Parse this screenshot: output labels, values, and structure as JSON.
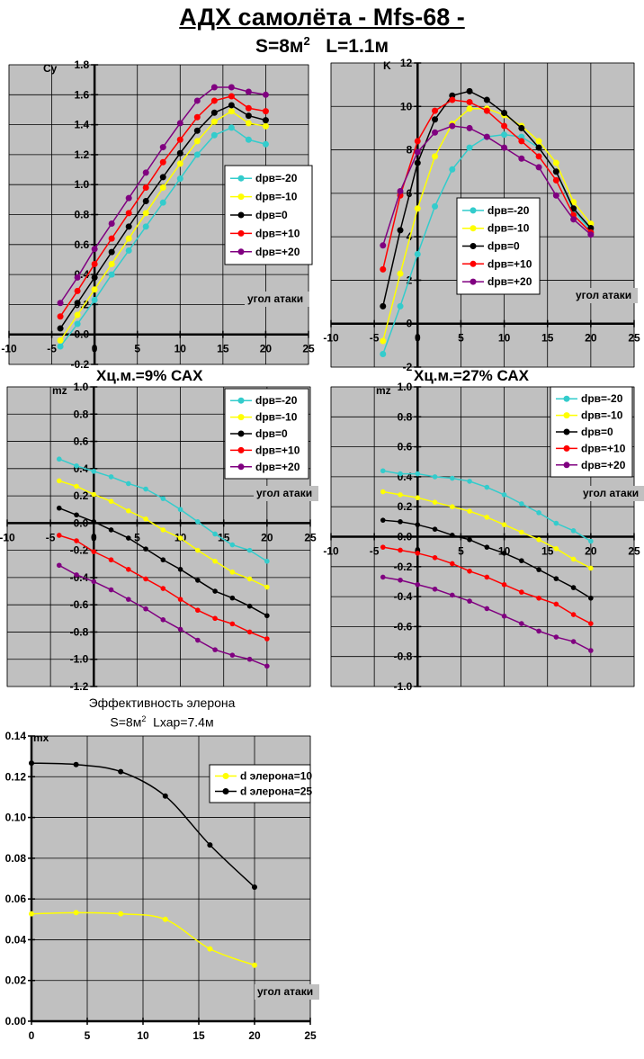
{
  "header": {
    "title": "АДХ самолёта  - Mfs-68 -",
    "subtitle_s": "S=8м",
    "subtitle_sup": "2",
    "subtitle_l": "L=1.1м"
  },
  "captions": {
    "mz9": "Хц.м.=9% САХ",
    "mz27": "Хц.м.=27% САХ",
    "aileron_line1": "Эффективность элерона",
    "aileron_line2_s": "S=8м",
    "aileron_line2_sup": "2",
    "aileron_line2_l": "Lхар=7.4м"
  },
  "colors": {
    "plot_bg": "#c0c0c0",
    "grid": "#000000",
    "dpr_m20": "#33cccc",
    "dpr_m10": "#ffff00",
    "dpr_0": "#000000",
    "dpr_p10": "#ff0000",
    "dpr_p20": "#800080"
  },
  "chart_data": [
    {
      "id": "cy",
      "type": "line",
      "title": "",
      "xlabel": "угол атаки",
      "ylabel": "Cy",
      "xlim": [
        -10,
        25
      ],
      "ylim": [
        -0.2,
        1.8
      ],
      "xticks": [
        -10,
        -5,
        0,
        5,
        10,
        15,
        20,
        25
      ],
      "yticks": [
        -0.2,
        0.0,
        0.2,
        0.4,
        0.6,
        0.8,
        1.0,
        1.2,
        1.4,
        1.6,
        1.8
      ],
      "ytick_labels": [
        "-0.2",
        "0.0",
        "0.2",
        "0.4",
        "0.6",
        "0.8",
        "1.0",
        "1.2",
        "1.4",
        "1.6",
        "1.8"
      ],
      "grid": true,
      "legend_position": "right-middle",
      "x": [
        -4,
        -2,
        0,
        2,
        4,
        6,
        8,
        10,
        12,
        14,
        16,
        18,
        20
      ],
      "series": [
        {
          "name": "dpв=-20",
          "color_key": "dpr_m20",
          "values": [
            -0.08,
            0.07,
            0.23,
            0.4,
            0.56,
            0.72,
            0.88,
            1.04,
            1.2,
            1.33,
            1.38,
            1.3,
            1.27
          ]
        },
        {
          "name": "dpв=-10",
          "color_key": "dpr_m10",
          "values": [
            -0.04,
            0.13,
            0.3,
            0.47,
            0.64,
            0.81,
            0.98,
            1.14,
            1.29,
            1.42,
            1.49,
            1.41,
            1.39
          ]
        },
        {
          "name": "dpв=0",
          "color_key": "dpr_0",
          "values": [
            0.04,
            0.21,
            0.38,
            0.55,
            0.72,
            0.89,
            1.05,
            1.21,
            1.36,
            1.48,
            1.53,
            1.46,
            1.43
          ]
        },
        {
          "name": "dpв=+10",
          "color_key": "dpr_p10",
          "values": [
            0.12,
            0.29,
            0.47,
            0.64,
            0.81,
            0.98,
            1.15,
            1.3,
            1.45,
            1.56,
            1.59,
            1.51,
            1.49
          ]
        },
        {
          "name": "dpв=+20",
          "color_key": "dpr_p20",
          "values": [
            0.21,
            0.38,
            0.57,
            0.74,
            0.91,
            1.08,
            1.25,
            1.41,
            1.56,
            1.65,
            1.65,
            1.62,
            1.6
          ]
        }
      ]
    },
    {
      "id": "k",
      "type": "line",
      "title": "",
      "xlabel": "угол атаки",
      "ylabel": "K",
      "xlim": [
        -10,
        25
      ],
      "ylim": [
        -2,
        12
      ],
      "xticks": [
        -10,
        -5,
        0,
        5,
        10,
        15,
        20,
        25
      ],
      "yticks": [
        -2,
        0,
        2,
        4,
        6,
        8,
        10,
        12
      ],
      "ytick_labels": [
        "-2",
        "0",
        "2",
        "4",
        "6",
        "8",
        "10",
        "12"
      ],
      "grid": true,
      "legend_position": "center-bottom",
      "x": [
        -4,
        -2,
        0,
        2,
        4,
        6,
        8,
        10,
        12,
        14,
        16,
        18,
        20
      ],
      "series": [
        {
          "name": "dpв=-20",
          "color_key": "dpr_m20",
          "values": [
            -1.4,
            0.8,
            3.2,
            5.4,
            7.1,
            8.1,
            8.6,
            8.7,
            8.6,
            8.1,
            7.0,
            5.2,
            4.3
          ]
        },
        {
          "name": "dpв=-10",
          "color_key": "dpr_m10",
          "values": [
            -0.8,
            2.3,
            5.3,
            7.7,
            9.2,
            9.9,
            9.9,
            9.6,
            9.1,
            8.4,
            7.4,
            5.6,
            4.6
          ]
        },
        {
          "name": "dpв=0",
          "color_key": "dpr_0",
          "values": [
            0.8,
            4.3,
            7.4,
            9.4,
            10.5,
            10.7,
            10.3,
            9.7,
            9.0,
            8.1,
            7.0,
            5.3,
            4.4
          ]
        },
        {
          "name": "dpв=+10",
          "color_key": "dpr_p10",
          "values": [
            2.5,
            5.9,
            8.4,
            9.8,
            10.3,
            10.2,
            9.8,
            9.1,
            8.4,
            7.7,
            6.6,
            5.0,
            4.2
          ]
        },
        {
          "name": "dpв=+20",
          "color_key": "dpr_p20",
          "values": [
            3.6,
            6.1,
            7.9,
            8.8,
            9.1,
            9.0,
            8.6,
            8.1,
            7.6,
            7.2,
            5.9,
            4.8,
            4.1
          ]
        }
      ]
    },
    {
      "id": "mz9",
      "type": "line",
      "title": "Хц.м.=9% САХ",
      "xlabel": "угол атаки",
      "ylabel": "mz",
      "xlim": [
        -10,
        25
      ],
      "ylim": [
        -1.2,
        1.0
      ],
      "xticks": [
        -10,
        -5,
        0,
        5,
        10,
        15,
        20,
        25
      ],
      "yticks": [
        -1.2,
        -1.0,
        -0.8,
        -0.6,
        -0.4,
        -0.2,
        0.0,
        0.2,
        0.4,
        0.6,
        0.8,
        1.0
      ],
      "ytick_labels": [
        "-1.2",
        "-1.0",
        "-0.8",
        "-0.6",
        "-0.4",
        "-0.2",
        "0.0",
        "0.2",
        "0.4",
        "0.6",
        "0.8",
        "1.0"
      ],
      "grid": true,
      "legend_position": "top-right",
      "x": [
        -4,
        -2,
        0,
        2,
        4,
        6,
        8,
        10,
        12,
        14,
        16,
        18,
        20
      ],
      "series": [
        {
          "name": "dpв=-20",
          "color_key": "dpr_m20",
          "values": [
            0.47,
            0.42,
            0.38,
            0.34,
            0.29,
            0.25,
            0.18,
            0.1,
            0.01,
            -0.08,
            -0.16,
            -0.2,
            -0.28
          ]
        },
        {
          "name": "dpв=-10",
          "color_key": "dpr_m10",
          "values": [
            0.31,
            0.27,
            0.21,
            0.16,
            0.09,
            0.03,
            -0.05,
            -0.11,
            -0.2,
            -0.28,
            -0.36,
            -0.41,
            -0.47
          ]
        },
        {
          "name": "dpв=0",
          "color_key": "dpr_0",
          "values": [
            0.11,
            0.06,
            0.01,
            -0.05,
            -0.11,
            -0.19,
            -0.27,
            -0.34,
            -0.42,
            -0.5,
            -0.55,
            -0.61,
            -0.68
          ]
        },
        {
          "name": "dpв=+10",
          "color_key": "dpr_p10",
          "values": [
            -0.09,
            -0.13,
            -0.21,
            -0.27,
            -0.34,
            -0.41,
            -0.48,
            -0.56,
            -0.64,
            -0.7,
            -0.74,
            -0.8,
            -0.85
          ]
        },
        {
          "name": "dpв=+20",
          "color_key": "dpr_p20",
          "values": [
            -0.31,
            -0.38,
            -0.43,
            -0.49,
            -0.56,
            -0.63,
            -0.71,
            -0.78,
            -0.86,
            -0.93,
            -0.97,
            -1.0,
            -1.05
          ]
        }
      ]
    },
    {
      "id": "mz27",
      "type": "line",
      "title": "Хц.м.=27% САХ",
      "xlabel": "угол атаки",
      "ylabel": "mz",
      "xlim": [
        -10,
        25
      ],
      "ylim": [
        -1.0,
        1.0
      ],
      "xticks": [
        -10,
        -5,
        0,
        5,
        10,
        15,
        20,
        25
      ],
      "yticks": [
        -1.0,
        -0.8,
        -0.6,
        -0.4,
        -0.2,
        0.0,
        0.2,
        0.4,
        0.6,
        0.8,
        1.0
      ],
      "ytick_labels": [
        "-1.0",
        "-0.8",
        "-0.6",
        "-0.4",
        "-0.2",
        "0.0",
        "0.2",
        "0.4",
        "0.6",
        "0.8",
        "1.0"
      ],
      "grid": true,
      "legend_position": "top-right",
      "x": [
        -4,
        -2,
        0,
        2,
        4,
        6,
        8,
        10,
        12,
        14,
        16,
        18,
        20
      ],
      "series": [
        {
          "name": "dpв=-20",
          "color_key": "dpr_m20",
          "values": [
            0.44,
            0.42,
            0.42,
            0.4,
            0.39,
            0.37,
            0.33,
            0.28,
            0.22,
            0.16,
            0.09,
            0.04,
            -0.03
          ]
        },
        {
          "name": "dpв=-10",
          "color_key": "dpr_m10",
          "values": [
            0.3,
            0.28,
            0.26,
            0.23,
            0.2,
            0.17,
            0.13,
            0.08,
            0.03,
            -0.02,
            -0.08,
            -0.15,
            -0.21
          ]
        },
        {
          "name": "dpв=0",
          "color_key": "dpr_0",
          "values": [
            0.11,
            0.1,
            0.08,
            0.05,
            0.01,
            -0.02,
            -0.07,
            -0.11,
            -0.16,
            -0.22,
            -0.28,
            -0.34,
            -0.41
          ]
        },
        {
          "name": "dpв=+10",
          "color_key": "dpr_p10",
          "values": [
            -0.07,
            -0.09,
            -0.11,
            -0.14,
            -0.18,
            -0.23,
            -0.27,
            -0.32,
            -0.37,
            -0.41,
            -0.45,
            -0.52,
            -0.58
          ]
        },
        {
          "name": "dpв=+20",
          "color_key": "dpr_p20",
          "values": [
            -0.27,
            -0.29,
            -0.32,
            -0.35,
            -0.39,
            -0.43,
            -0.48,
            -0.53,
            -0.58,
            -0.63,
            -0.67,
            -0.7,
            -0.76
          ]
        }
      ]
    },
    {
      "id": "mx",
      "type": "line",
      "title": "Эффективность элерона S=8м2 Lхар=7.4м",
      "xlabel": "угол атаки",
      "ylabel": "mx",
      "xlim": [
        0,
        25
      ],
      "ylim": [
        0.0,
        0.14
      ],
      "xticks": [
        0,
        5,
        10,
        15,
        20,
        25
      ],
      "yticks": [
        0.0,
        0.02,
        0.04,
        0.06,
        0.08,
        0.1,
        0.12,
        0.14
      ],
      "ytick_labels": [
        "0.00",
        "0.02",
        "0.04",
        "0.06",
        "0.08",
        "0.10",
        "0.12",
        "0.14"
      ],
      "grid": true,
      "smooth": true,
      "legend_position": "top-right",
      "x": [
        0,
        4,
        8,
        12,
        16,
        20
      ],
      "series": [
        {
          "name": "d элерона=10",
          "color_key": "dpr_m10",
          "values": [
            0.0527,
            0.0533,
            0.0527,
            0.05,
            0.0355,
            0.0275
          ]
        },
        {
          "name": "d элерона=25",
          "color_key": "dpr_0",
          "values": [
            0.1267,
            0.126,
            0.1225,
            0.1105,
            0.0865,
            0.0658
          ]
        }
      ]
    }
  ]
}
